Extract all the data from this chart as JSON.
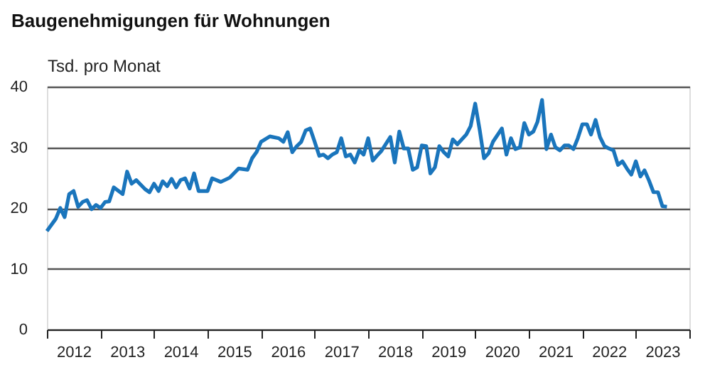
{
  "chart_data": {
    "type": "line",
    "title": "Baugenehmigungen für Wohnungen",
    "ylabel": "Tsd. pro Monat",
    "x": [
      "2012-01",
      "2012-03",
      "2012-04",
      "2012-05",
      "2012-06",
      "2012-07",
      "2012-08",
      "2012-09",
      "2012-10",
      "2012-11",
      "2012-12",
      "2013-01",
      "2013-02",
      "2013-03",
      "2013-04",
      "2013-06",
      "2013-07",
      "2013-08",
      "2013-09",
      "2013-11",
      "2013-12",
      "2014-01",
      "2014-02",
      "2014-03",
      "2014-04",
      "2014-05",
      "2014-06",
      "2014-07",
      "2014-08",
      "2014-09",
      "2014-10",
      "2014-11",
      "2015-01",
      "2015-02",
      "2015-04",
      "2015-06",
      "2015-08",
      "2015-10",
      "2015-11",
      "2015-12",
      "2016-01",
      "2016-03",
      "2016-05",
      "2016-06",
      "2016-07",
      "2016-08",
      "2016-09",
      "2016-10",
      "2016-11",
      "2016-12",
      "2017-01",
      "2017-02",
      "2017-03",
      "2017-04",
      "2017-05",
      "2017-06",
      "2017-07",
      "2017-08",
      "2017-09",
      "2017-10",
      "2017-11",
      "2017-12",
      "2018-01",
      "2018-02",
      "2018-03",
      "2018-04",
      "2018-06",
      "2018-07",
      "2018-08",
      "2018-09",
      "2018-10",
      "2018-11",
      "2018-12",
      "2019-01",
      "2019-02",
      "2019-03",
      "2019-04",
      "2019-05",
      "2019-06",
      "2019-07",
      "2019-08",
      "2019-09",
      "2019-10",
      "2019-11",
      "2019-12",
      "2020-01",
      "2020-02",
      "2020-03",
      "2020-04",
      "2020-05",
      "2020-07",
      "2020-08",
      "2020-09",
      "2020-10",
      "2020-11",
      "2020-12",
      "2021-01",
      "2021-02",
      "2021-03",
      "2021-04",
      "2021-05",
      "2021-06",
      "2021-07",
      "2021-08",
      "2021-09",
      "2021-10",
      "2021-11",
      "2021-12",
      "2022-01",
      "2022-02",
      "2022-03",
      "2022-04",
      "2022-05",
      "2022-06",
      "2022-07",
      "2022-08",
      "2022-09",
      "2022-10",
      "2022-11",
      "2022-12",
      "2023-01",
      "2023-02",
      "2023-03",
      "2023-04",
      "2023-05",
      "2023-06",
      "2023-07",
      "2023-08"
    ],
    "series": [
      {
        "color": "#1a75bc",
        "values": [
          16.2,
          18.2,
          20,
          18.5,
          22.3,
          22.8,
          20.2,
          21,
          21.3,
          19.8,
          20.5,
          20,
          21,
          21.1,
          23.4,
          22.3,
          26,
          24,
          24.6,
          23.1,
          22.6,
          24,
          22.8,
          24.4,
          23.6,
          24.8,
          23.4,
          24.6,
          24.9,
          23.2,
          25.7,
          22.8,
          22.8,
          24.9,
          24.3,
          25,
          26.5,
          26.3,
          28.2,
          29.2,
          30.9,
          31.8,
          31.5,
          30.9,
          32.5,
          29.2,
          30.2,
          30.9,
          32.8,
          33.1,
          30.9,
          28.6,
          28.8,
          28.2,
          28.8,
          29.2,
          31.5,
          28.5,
          28.8,
          27.5,
          29.5,
          28.8,
          31.5,
          27.8,
          28.6,
          29.4,
          31.7,
          27.5,
          32.6,
          29.8,
          29.8,
          26.3,
          26.7,
          30.3,
          30.2,
          25.7,
          26.7,
          30.2,
          29.2,
          28.5,
          31.3,
          30.5,
          31.3,
          32.1,
          33.5,
          37.2,
          32.8,
          28.2,
          29,
          30.9,
          33.1,
          28.8,
          31.5,
          29.7,
          30,
          34,
          32.1,
          32.6,
          34.2,
          37.8,
          29.7,
          32.1,
          30,
          29.5,
          30.3,
          30.3,
          29.7,
          31.5,
          33.8,
          33.8,
          32.1,
          34.5,
          31.7,
          30.2,
          29.8,
          29.5,
          27.1,
          27.7,
          26.5,
          25.5,
          27.7,
          25.2,
          26.2,
          24.5,
          22.6,
          22.6,
          20.3,
          20.2
        ]
      }
    ],
    "xlim": [
      "2012-01",
      "2024-01"
    ],
    "xticks": [
      {
        "value": "2012-01",
        "label": null
      },
      {
        "value": "2012-07",
        "label": "2012"
      },
      {
        "value": "2013-01",
        "label": null
      },
      {
        "value": "2013-07",
        "label": "2013"
      },
      {
        "value": "2014-01",
        "label": null
      },
      {
        "value": "2014-07",
        "label": "2014"
      },
      {
        "value": "2015-01",
        "label": null
      },
      {
        "value": "2015-07",
        "label": "2015"
      },
      {
        "value": "2016-01",
        "label": null
      },
      {
        "value": "2016-07",
        "label": "2016"
      },
      {
        "value": "2017-01",
        "label": null
      },
      {
        "value": "2017-07",
        "label": "2017"
      },
      {
        "value": "2018-01",
        "label": null
      },
      {
        "value": "2018-07",
        "label": "2018"
      },
      {
        "value": "2019-01",
        "label": null
      },
      {
        "value": "2019-07",
        "label": "2019"
      },
      {
        "value": "2020-01",
        "label": null
      },
      {
        "value": "2020-07",
        "label": "2020"
      },
      {
        "value": "2021-01",
        "label": null
      },
      {
        "value": "2021-07",
        "label": "2021"
      },
      {
        "value": "2022-01",
        "label": null
      },
      {
        "value": "2022-07",
        "label": "2022"
      },
      {
        "value": "2023-01",
        "label": null
      },
      {
        "value": "2023-07",
        "label": "2023"
      },
      {
        "value": "2024-01",
        "label": null
      }
    ],
    "ylim": [
      0,
      40
    ],
    "yticks": [
      0,
      10,
      20,
      30,
      40
    ],
    "grid": "y",
    "marker": "none",
    "line_style": "solid"
  }
}
